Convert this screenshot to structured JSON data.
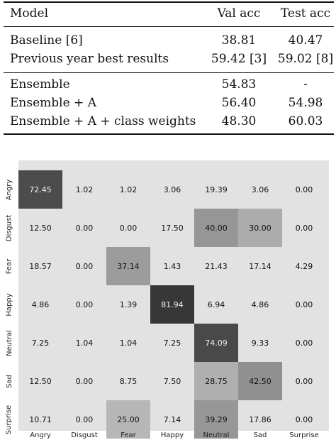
{
  "table": {
    "headers": {
      "model": "Model",
      "val": "Val acc",
      "test": "Test acc"
    },
    "rows": [
      {
        "model": "Baseline [6]",
        "val": "38.81",
        "test": "40.47"
      },
      {
        "model": "Previous year best results",
        "val": "59.42 [3]",
        "test": "59.02 [8]"
      },
      {
        "model": "Ensemble",
        "val": "54.83",
        "test": "-"
      },
      {
        "model": "Ensemble + A",
        "val": "56.40",
        "test": "54.98"
      },
      {
        "model": "Ensemble + A + class weights",
        "val": "48.30",
        "test": "60.03"
      }
    ]
  },
  "chart_data": {
    "type": "heatmap",
    "row_labels": [
      "Angry",
      "Disgust",
      "Fear",
      "Happy",
      "Neutral",
      "Sad",
      "Surprise"
    ],
    "col_labels": [
      "Angry",
      "Disgust",
      "Fear",
      "Happy",
      "Neutral",
      "Sad",
      "Surprise"
    ],
    "cells": [
      [
        "72.45",
        "1.02",
        "1.02",
        "3.06",
        "19.39",
        "3.06",
        "0.00"
      ],
      [
        "12.50",
        "0.00",
        "0.00",
        "17.50",
        "40.00",
        "30.00",
        "0.00"
      ],
      [
        "18.57",
        "0.00",
        "37.14",
        "1.43",
        "21.43",
        "17.14",
        "4.29"
      ],
      [
        "4.86",
        "0.00",
        "1.39",
        "81.94",
        "6.94",
        "4.86",
        "0.00"
      ],
      [
        "7.25",
        "1.04",
        "1.04",
        "7.25",
        "74.09",
        "9.33",
        "0.00"
      ],
      [
        "12.50",
        "0.00",
        "8.75",
        "7.50",
        "28.75",
        "42.50",
        "0.00"
      ],
      [
        "10.71",
        "0.00",
        "25.00",
        "7.14",
        "39.29",
        "17.86",
        "0.00"
      ]
    ],
    "colors": {
      "low": "#e2e2e2",
      "mid": "#b6b6b6",
      "high": "#3a3a3a"
    }
  }
}
